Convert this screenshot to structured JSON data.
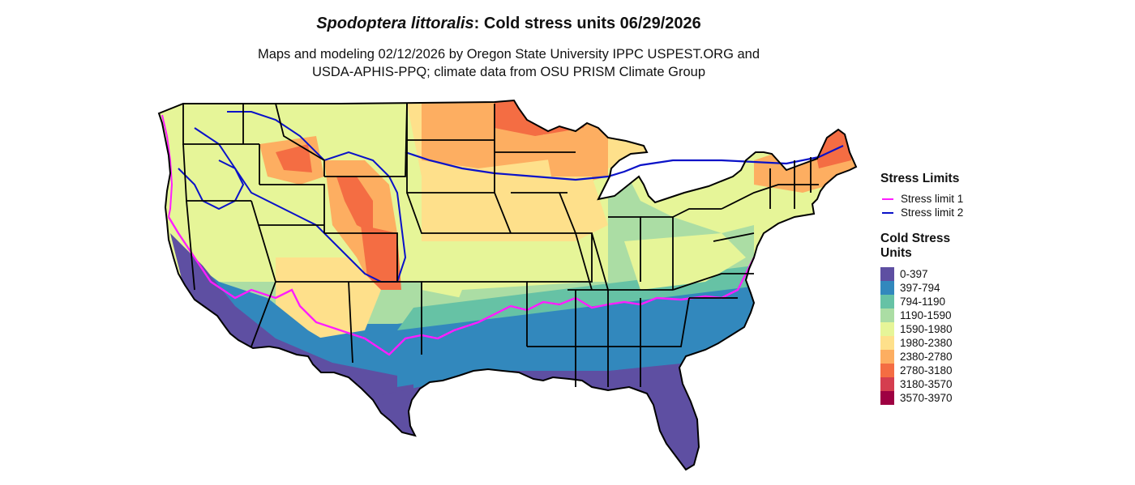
{
  "title": {
    "italic_part": "Spodoptera littoralis",
    "rest": ": Cold stress units 06/29/2026"
  },
  "subtitle": {
    "line1": "Maps and modeling 02/12/2026 by Oregon State University IPPC USPEST.ORG and",
    "line2": "USDA-APHIS-PPQ; climate data from OSU PRISM Climate Group"
  },
  "legend": {
    "stress_title": "Stress Limits",
    "stress_items": [
      {
        "label": "Stress limit 1",
        "color": "#ff1dff"
      },
      {
        "label": "Stress limit 2",
        "color": "#0a12c8"
      }
    ],
    "cold_title": "Cold Stress Units",
    "cold_items": [
      {
        "label": "0-397",
        "color": "#5e4fa2"
      },
      {
        "label": "397-794",
        "color": "#3288bd"
      },
      {
        "label": "794-1190",
        "color": "#66c2a5"
      },
      {
        "label": "1190-1590",
        "color": "#abdda4"
      },
      {
        "label": "1590-1980",
        "color": "#e6f598"
      },
      {
        "label": "1980-2380",
        "color": "#fee08b"
      },
      {
        "label": "2380-2780",
        "color": "#fdae61"
      },
      {
        "label": "2780-3180",
        "color": "#f46d43"
      },
      {
        "label": "3180-3570",
        "color": "#d53e4f"
      },
      {
        "label": "3570-3970",
        "color": "#9e0142"
      }
    ]
  }
}
